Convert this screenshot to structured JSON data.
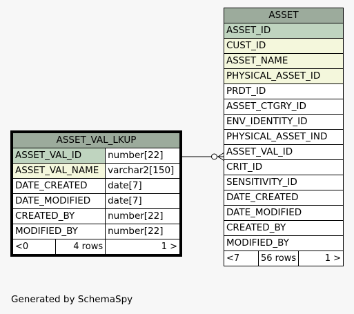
{
  "tables": {
    "asset": {
      "name": "ASSET",
      "columns": [
        {
          "name": "ASSET_ID",
          "key": "pk"
        },
        {
          "name": "CUST_ID",
          "key": "fk"
        },
        {
          "name": "ASSET_NAME",
          "key": "fk"
        },
        {
          "name": "PHYSICAL_ASSET_ID",
          "key": "fk"
        },
        {
          "name": "PRDT_ID",
          "key": ""
        },
        {
          "name": "ASSET_CTGRY_ID",
          "key": ""
        },
        {
          "name": "ENV_IDENTITY_ID",
          "key": ""
        },
        {
          "name": "PHYSICAL_ASSET_IND",
          "key": ""
        },
        {
          "name": "ASSET_VAL_ID",
          "key": ""
        },
        {
          "name": "CRIT_ID",
          "key": ""
        },
        {
          "name": "SENSITIVITY_ID",
          "key": ""
        },
        {
          "name": "DATE_CREATED",
          "key": ""
        },
        {
          "name": "DATE_MODIFIED",
          "key": ""
        },
        {
          "name": "CREATED_BY",
          "key": ""
        },
        {
          "name": "MODIFIED_BY",
          "key": ""
        }
      ],
      "footer": {
        "parents": "<7",
        "rows": "56 rows",
        "children": "1 >"
      }
    },
    "asset_val_lkup": {
      "name": "ASSET_VAL_LKUP",
      "columns": [
        {
          "name": "ASSET_VAL_ID",
          "type": "number[22]",
          "key": "pk"
        },
        {
          "name": "ASSET_VAL_NAME",
          "type": "varchar2[150]",
          "key": "fk"
        },
        {
          "name": "DATE_CREATED",
          "type": "date[7]",
          "key": ""
        },
        {
          "name": "DATE_MODIFIED",
          "type": "date[7]",
          "key": ""
        },
        {
          "name": "CREATED_BY",
          "type": "number[22]",
          "key": ""
        },
        {
          "name": "MODIFIED_BY",
          "type": "number[22]",
          "key": ""
        }
      ],
      "footer": {
        "parents": "<0",
        "rows": "4 rows",
        "children": "1 >"
      }
    }
  },
  "footer_text": "Generated by SchemaSpy"
}
